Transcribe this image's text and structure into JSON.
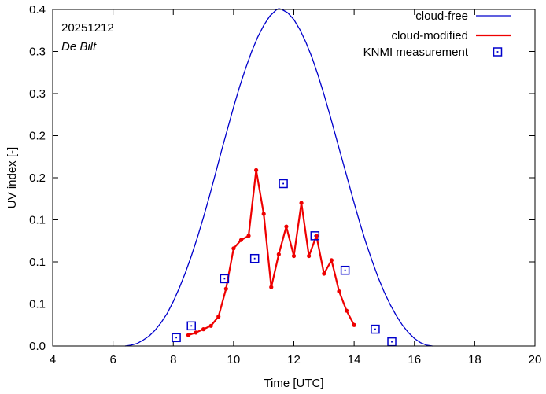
{
  "chart_data": {
    "type": "line",
    "title": "",
    "xlabel": "Time  [UTC]",
    "ylabel": "UV index  [-]",
    "xlim": [
      4,
      20
    ],
    "ylim": [
      0,
      0.4
    ],
    "xticks": [
      4,
      6,
      8,
      10,
      12,
      14,
      16,
      18,
      20
    ],
    "yticks": [
      0.0,
      0.05,
      0.1,
      0.15,
      0.2,
      0.25,
      0.3,
      0.35,
      0.4
    ],
    "ytick_labels": [
      "0.0",
      "0.1",
      "0.1",
      "0.1",
      "0.2",
      "0.2",
      "0.3",
      "0.3",
      "0.4"
    ],
    "annotations": {
      "date": "20251212",
      "location": "De Bilt"
    },
    "legend_position": "top-right",
    "series": [
      {
        "name": "cloud-free",
        "style": "line",
        "color": "#0000cc",
        "x": [
          6.4,
          6.6,
          6.8,
          7.0,
          7.2,
          7.4,
          7.6,
          7.8,
          8.0,
          8.2,
          8.4,
          8.6,
          8.8,
          9.0,
          9.2,
          9.4,
          9.6,
          9.8,
          10.0,
          10.2,
          10.4,
          10.6,
          10.8,
          11.0,
          11.2,
          11.4,
          11.5,
          11.6,
          11.8,
          12.0,
          12.2,
          12.4,
          12.6,
          12.8,
          13.0,
          13.2,
          13.4,
          13.6,
          13.8,
          14.0,
          14.2,
          14.4,
          14.6,
          14.8,
          15.0,
          15.2,
          15.4,
          15.6,
          15.8,
          16.0,
          16.2,
          16.4,
          16.6
        ],
        "y": [
          0.0,
          0.001,
          0.003,
          0.007,
          0.012,
          0.019,
          0.028,
          0.039,
          0.053,
          0.069,
          0.087,
          0.107,
          0.129,
          0.153,
          0.178,
          0.205,
          0.232,
          0.258,
          0.284,
          0.308,
          0.33,
          0.35,
          0.367,
          0.381,
          0.392,
          0.399,
          0.401,
          0.4,
          0.396,
          0.388,
          0.376,
          0.361,
          0.343,
          0.322,
          0.299,
          0.274,
          0.248,
          0.222,
          0.196,
          0.17,
          0.145,
          0.122,
          0.101,
          0.081,
          0.064,
          0.049,
          0.036,
          0.025,
          0.016,
          0.009,
          0.004,
          0.001,
          0.0
        ]
      },
      {
        "name": "cloud-modified",
        "style": "line-markers",
        "color": "#ee0000",
        "x": [
          8.5,
          8.75,
          9.0,
          9.25,
          9.5,
          9.75,
          10.0,
          10.25,
          10.5,
          10.75,
          11.0,
          11.25,
          11.5,
          11.75,
          12.0,
          12.25,
          12.5,
          12.75,
          13.0,
          13.25,
          13.5,
          13.75,
          14.0
        ],
        "y": [
          0.013,
          0.016,
          0.02,
          0.024,
          0.035,
          0.068,
          0.116,
          0.126,
          0.131,
          0.209,
          0.157,
          0.07,
          0.109,
          0.142,
          0.107,
          0.17,
          0.107,
          0.131,
          0.086,
          0.102,
          0.065,
          0.042,
          0.025
        ]
      },
      {
        "name": "KNMI measurement",
        "style": "markers",
        "color": "#0000cc",
        "x": [
          8.1,
          8.6,
          9.7,
          10.7,
          11.65,
          12.7,
          13.7,
          14.7,
          15.25
        ],
        "y": [
          0.01,
          0.024,
          0.08,
          0.104,
          0.193,
          0.131,
          0.09,
          0.02,
          0.005
        ]
      }
    ]
  }
}
